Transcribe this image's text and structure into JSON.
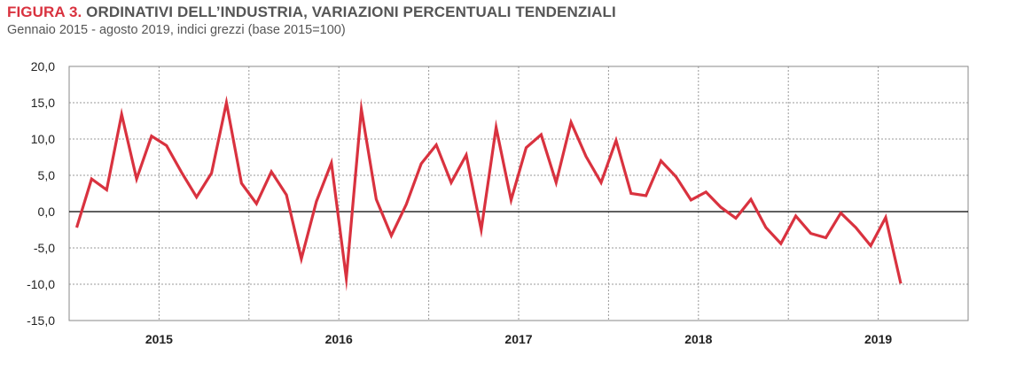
{
  "header": {
    "figure_label": "FIGURA 3.",
    "title": "ORDINATIVI DELL’INDUSTRIA, VARIAZIONI PERCENTUALI TENDENZIALI",
    "subtitle": "Gennaio 2015 - agosto 2019, indici grezzi (base 2015=100)"
  },
  "chart_data": {
    "type": "line",
    "title": "ORDINATIVI DELL’INDUSTRIA, VARIAZIONI PERCENTUALI TENDENZIALI",
    "subtitle": "Gennaio 2015 - agosto 2019, indici grezzi (base 2015=100)",
    "x_start": "2015-01",
    "x_end": "2019-08",
    "x_tick_labels": [
      "2015",
      "2016",
      "2017",
      "2018",
      "2019"
    ],
    "y_tick_labels": [
      "20,0",
      "15,0",
      "10,0",
      "5,0",
      "0,0",
      "-5,0",
      "-10,0",
      "-15,0"
    ],
    "ylim": [
      -15,
      20
    ],
    "grid": true,
    "line_color": "#d9323f",
    "zero_line_color": "#000000",
    "series": [
      {
        "values": [
          -2.2,
          4.5,
          3.0,
          13.4,
          4.5,
          10.4,
          9.1,
          5.4,
          2.0,
          5.3,
          15.0,
          3.9,
          1.1,
          5.5,
          2.3,
          -6.5,
          1.4,
          6.7,
          -9.2,
          14.1,
          1.7,
          -3.3,
          1.0,
          6.6,
          9.2,
          4.0,
          7.8,
          -2.5,
          11.6,
          1.6,
          8.8,
          10.6,
          4.0,
          12.3,
          7.6,
          4.0,
          9.8,
          2.5,
          2.2,
          7.0,
          4.8,
          1.6,
          2.7,
          0.6,
          -0.9,
          1.7,
          -2.2,
          -4.4,
          -0.6,
          -3.0,
          -3.6,
          -0.2,
          -2.2,
          -4.7,
          -0.8,
          -9.9
        ]
      }
    ]
  }
}
